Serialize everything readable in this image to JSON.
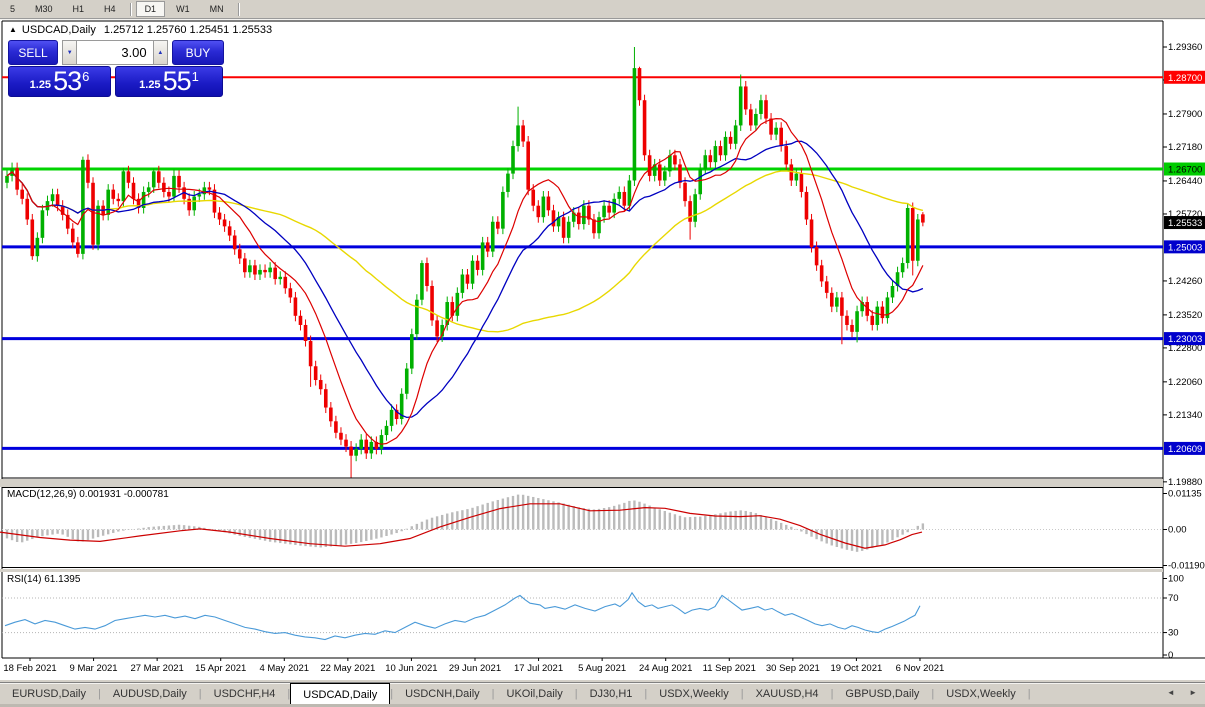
{
  "toolbar": {
    "timeframes": [
      {
        "label": "5",
        "active": false
      },
      {
        "label": "M30",
        "active": false
      },
      {
        "label": "H1",
        "active": false
      },
      {
        "label": "H4",
        "active": false
      },
      {
        "label": "D1",
        "active": true
      },
      {
        "label": "W1",
        "active": false
      },
      {
        "label": "MN",
        "active": false
      }
    ]
  },
  "chart_header": {
    "triangle_icon": "▲",
    "title": "USDCAD,Daily",
    "ohlc_text": "1.25712 1.25760 1.25451 1.25533"
  },
  "trade_panel": {
    "sell_label": "SELL",
    "buy_label": "BUY",
    "volume": "3.00",
    "spin_down_icon": "▼",
    "spin_up_icon": "▲",
    "sell_price": {
      "small": "1.25",
      "big": "53",
      "sup": "6"
    },
    "buy_price": {
      "small": "1.25",
      "big": "55",
      "sup": "1"
    }
  },
  "price_axis": {
    "ticks": [
      "1.29360",
      "1.28640",
      "1.27900",
      "1.27180",
      "1.26440",
      "1.25720",
      "1.24260",
      "1.23520",
      "1.22800",
      "1.22060",
      "1.21340",
      "1.19880"
    ],
    "badges": [
      {
        "text": "1.28700",
        "bg": "#ff0000",
        "fg": "#ffffff",
        "price": 1.287
      },
      {
        "text": "1.26700",
        "bg": "#00cc00",
        "fg": "#000000",
        "price": 1.267
      },
      {
        "text": "1.25533",
        "bg": "#000000",
        "fg": "#ffffff",
        "price": 1.25533
      },
      {
        "text": "1.25003",
        "bg": "#0000cc",
        "fg": "#ffffff",
        "price": 1.25003
      },
      {
        "text": "1.23003",
        "bg": "#0000cc",
        "fg": "#ffffff",
        "price": 1.23003
      },
      {
        "text": "1.20609",
        "bg": "#0000cc",
        "fg": "#ffffff",
        "price": 1.20609
      }
    ]
  },
  "dates": [
    "18 Feb 2021",
    "9 Mar 2021",
    "27 Mar 2021",
    "15 Apr 2021",
    "4 May 2021",
    "22 May 2021",
    "10 Jun 2021",
    "29 Jun 2021",
    "17 Jul 2021",
    "5 Aug 2021",
    "24 Aug 2021",
    "11 Sep 2021",
    "30 Sep 2021",
    "19 Oct 2021",
    "6 Nov 2021"
  ],
  "tabs": {
    "items": [
      "EURUSD,Daily",
      "AUDUSD,Daily",
      "USDCHF,H4",
      "USDCAD,Daily",
      "USDCNH,Daily",
      "UKOil,Daily",
      "DJ30,H1",
      "USDX,Weekly",
      "XAUUSD,H4",
      "GBPUSD,Daily",
      "USDX,Weekly"
    ],
    "active_index": 3,
    "left_arrow": "◄",
    "right_arrow": "►"
  },
  "chart_data": [
    {
      "type": "candlestick",
      "symbol": "USDCAD",
      "timeframe": "Daily",
      "y_range": [
        1.1988,
        1.2936
      ],
      "grid": false,
      "colors": {
        "up": "#00b000",
        "down": "#ee0000",
        "ma_fast": "#dd0000",
        "ma_mid": "#0000c0",
        "ma_slow": "#e8d800"
      },
      "h_lines": [
        {
          "price": 1.287,
          "color": "#fb0000",
          "width": 2
        },
        {
          "price": 1.267,
          "color": "#00d300",
          "width": 3
        },
        {
          "price": 1.25003,
          "color": "#0000dd",
          "width": 3
        },
        {
          "price": 1.23003,
          "color": "#0000dd",
          "width": 3
        },
        {
          "price": 1.20609,
          "color": "#0000dd",
          "width": 3
        }
      ],
      "moving_average_periods": {
        "fast": 10,
        "mid": 21,
        "slow": 55
      },
      "open_first": 1.264,
      "default_wick": 0.0012,
      "closes": [
        1.2655,
        1.2672,
        1.2625,
        1.2605,
        1.256,
        1.248,
        1.252,
        1.258,
        1.26,
        1.2615,
        1.259,
        1.257,
        1.254,
        1.251,
        1.2485,
        1.269,
        1.264,
        1.2505,
        1.259,
        1.257,
        1.2625,
        1.2605,
        1.26,
        1.2665,
        1.264,
        1.2605,
        1.2585,
        1.262,
        1.263,
        1.2665,
        1.264,
        1.262,
        1.261,
        1.2655,
        1.263,
        1.2605,
        1.258,
        1.261,
        1.2615,
        1.263,
        1.2625,
        1.2575,
        1.256,
        1.2545,
        1.2525,
        1.2495,
        1.2475,
        1.2445,
        1.246,
        1.244,
        1.245,
        1.2445,
        1.2455,
        1.243,
        1.2435,
        1.241,
        1.239,
        1.235,
        1.233,
        1.2295,
        1.224,
        1.221,
        1.219,
        1.215,
        1.212,
        1.2095,
        1.208,
        1.2065,
        1.2045,
        1.206,
        1.208,
        1.205,
        1.2075,
        1.206,
        1.209,
        1.211,
        1.2145,
        1.2125,
        1.218,
        1.2235,
        1.231,
        1.2385,
        1.2465,
        1.2415,
        1.234,
        1.2305,
        1.233,
        1.238,
        1.235,
        1.24,
        1.244,
        1.242,
        1.247,
        1.245,
        1.251,
        1.249,
        1.2555,
        1.254,
        1.262,
        1.266,
        1.272,
        1.2765,
        1.273,
        1.2625,
        1.259,
        1.2565,
        1.261,
        1.258,
        1.2545,
        1.2565,
        1.252,
        1.2555,
        1.2575,
        1.255,
        1.259,
        1.256,
        1.253,
        1.2565,
        1.259,
        1.2575,
        1.2605,
        1.262,
        1.259,
        1.2645,
        1.289,
        1.282,
        1.27,
        1.2655,
        1.268,
        1.2645,
        1.2665,
        1.27,
        1.268,
        1.264,
        1.26,
        1.2555,
        1.2615,
        1.267,
        1.27,
        1.2685,
        1.272,
        1.27,
        1.274,
        1.2725,
        1.2765,
        1.285,
        1.28,
        1.2765,
        1.279,
        1.282,
        1.278,
        1.2745,
        1.276,
        1.272,
        1.268,
        1.2645,
        1.266,
        1.262,
        1.256,
        1.25,
        1.246,
        1.2425,
        1.24,
        1.237,
        1.239,
        1.235,
        1.233,
        1.2315,
        1.236,
        1.238,
        1.235,
        1.233,
        1.237,
        1.2345,
        1.239,
        1.2415,
        1.2445,
        1.2465,
        1.2585,
        1.247,
        1.256,
        1.25533
      ],
      "overrides": {
        "5": {
          "l": 1.2472
        },
        "14": {
          "l": 1.2477
        },
        "15": {
          "h": 1.2697
        },
        "17": {
          "l": 1.2494
        },
        "23": {
          "h": 1.2673
        },
        "29": {
          "h": 1.2671
        },
        "33": {
          "h": 1.2669
        },
        "60": {
          "l": 1.2195
        },
        "68": {
          "l": 1.1995
        },
        "82": {
          "h": 1.2471
        },
        "101": {
          "h": 1.2806
        },
        "124": {
          "h": 1.2936
        },
        "125": {
          "h": 1.2893
        },
        "135": {
          "l": 1.2516
        },
        "145": {
          "h": 1.2876
        },
        "165": {
          "l": 1.2288
        },
        "168": {
          "l": 1.2292
        },
        "178": {
          "h": 1.2594
        },
        "179": {
          "l": 1.2438
        },
        "181": {
          "o": 1.25712,
          "h": 1.2576,
          "l": 1.25451,
          "c": 1.25533
        }
      }
    },
    {
      "type": "macd",
      "label": "MACD(12,26,9)",
      "values_text": "0.001931 -0.000781",
      "axis_ticks": [
        "0.01135",
        "0.00",
        "-0.01190"
      ],
      "axis_values": [
        0.01135,
        0.0,
        -0.0119
      ],
      "hist_color": "#bbbbbb",
      "signal_color": "#cc0000",
      "hist_points": [
        [
          0,
          -0.002
        ],
        [
          20,
          -0.0042
        ],
        [
          40,
          -0.0022
        ],
        [
          60,
          -0.0012
        ],
        [
          80,
          -0.004
        ],
        [
          100,
          -0.0022
        ],
        [
          120,
          -0.0005
        ],
        [
          150,
          0.0008
        ],
        [
          180,
          0.0015
        ],
        [
          200,
          0.0008
        ],
        [
          220,
          -0.0005
        ],
        [
          240,
          -0.002
        ],
        [
          270,
          -0.0038
        ],
        [
          300,
          -0.005
        ],
        [
          320,
          -0.0056
        ],
        [
          340,
          -0.005
        ],
        [
          360,
          -0.004
        ],
        [
          380,
          -0.0026
        ],
        [
          400,
          -0.0008
        ],
        [
          415,
          0.0015
        ],
        [
          430,
          0.0035
        ],
        [
          450,
          0.0052
        ],
        [
          470,
          0.0065
        ],
        [
          490,
          0.0085
        ],
        [
          505,
          0.0098
        ],
        [
          520,
          0.011
        ],
        [
          535,
          0.01
        ],
        [
          550,
          0.009
        ],
        [
          565,
          0.008
        ],
        [
          580,
          0.0068
        ],
        [
          595,
          0.0062
        ],
        [
          610,
          0.007
        ],
        [
          622,
          0.008
        ],
        [
          632,
          0.0092
        ],
        [
          640,
          0.0086
        ],
        [
          655,
          0.0068
        ],
        [
          670,
          0.0052
        ],
        [
          685,
          0.0038
        ],
        [
          700,
          0.004
        ],
        [
          715,
          0.0047
        ],
        [
          730,
          0.0056
        ],
        [
          742,
          0.006
        ],
        [
          755,
          0.0052
        ],
        [
          770,
          0.0034
        ],
        [
          785,
          0.0016
        ],
        [
          795,
          0.0004
        ],
        [
          805,
          -0.0012
        ],
        [
          815,
          -0.0028
        ],
        [
          830,
          -0.0048
        ],
        [
          845,
          -0.0062
        ],
        [
          858,
          -0.007
        ],
        [
          870,
          -0.006
        ],
        [
          882,
          -0.0048
        ],
        [
          892,
          -0.0034
        ],
        [
          900,
          -0.002
        ],
        [
          908,
          -0.0008
        ],
        [
          915,
          0.0006
        ],
        [
          922,
          0.0019
        ]
      ],
      "signal_points": [
        [
          0,
          -0.0008
        ],
        [
          40,
          -0.0025
        ],
        [
          70,
          -0.0033
        ],
        [
          100,
          -0.0037
        ],
        [
          140,
          -0.002
        ],
        [
          180,
          -0.0004
        ],
        [
          200,
          0.0002
        ],
        [
          230,
          -0.0008
        ],
        [
          270,
          -0.0028
        ],
        [
          310,
          -0.0044
        ],
        [
          345,
          -0.0052
        ],
        [
          380,
          -0.0044
        ],
        [
          410,
          -0.0028
        ],
        [
          440,
          0.0008
        ],
        [
          470,
          0.0038
        ],
        [
          500,
          0.0065
        ],
        [
          530,
          0.008
        ],
        [
          560,
          0.008
        ],
        [
          590,
          0.0058
        ],
        [
          620,
          0.006
        ],
        [
          645,
          0.0068
        ],
        [
          665,
          0.0066
        ],
        [
          690,
          0.005
        ],
        [
          715,
          0.0042
        ],
        [
          740,
          0.004
        ],
        [
          760,
          0.0043
        ],
        [
          780,
          0.0032
        ],
        [
          800,
          0.0012
        ],
        [
          820,
          -0.0015
        ],
        [
          845,
          -0.0042
        ],
        [
          865,
          -0.0058
        ],
        [
          885,
          -0.0048
        ],
        [
          900,
          -0.0032
        ],
        [
          912,
          -0.0016
        ],
        [
          922,
          -0.0008
        ]
      ]
    },
    {
      "type": "line",
      "label": "RSI(14)",
      "value_text": "61.1395",
      "axis_ticks": [
        "100",
        "70",
        "30",
        "0"
      ],
      "axis_values": [
        100,
        70,
        30,
        0
      ],
      "levels": [
        70,
        30
      ],
      "line_color": "#4a9ad8",
      "points": [
        [
          5,
          38
        ],
        [
          15,
          42
        ],
        [
          25,
          45
        ],
        [
          35,
          40
        ],
        [
          45,
          44
        ],
        [
          55,
          42
        ],
        [
          65,
          38
        ],
        [
          75,
          34
        ],
        [
          85,
          36
        ],
        [
          95,
          34
        ],
        [
          105,
          38
        ],
        [
          115,
          44
        ],
        [
          125,
          46
        ],
        [
          135,
          48
        ],
        [
          145,
          50
        ],
        [
          155,
          48
        ],
        [
          165,
          50
        ],
        [
          175,
          47
        ],
        [
          185,
          49
        ],
        [
          195,
          46
        ],
        [
          205,
          50
        ],
        [
          215,
          48
        ],
        [
          225,
          44
        ],
        [
          235,
          40
        ],
        [
          245,
          36
        ],
        [
          255,
          34
        ],
        [
          265,
          31
        ],
        [
          275,
          29
        ],
        [
          285,
          30
        ],
        [
          295,
          27
        ],
        [
          305,
          25
        ],
        [
          315,
          24
        ],
        [
          325,
          22
        ],
        [
          335,
          26
        ],
        [
          345,
          24
        ],
        [
          355,
          27
        ],
        [
          365,
          29
        ],
        [
          375,
          28
        ],
        [
          385,
          32
        ],
        [
          395,
          30
        ],
        [
          405,
          36
        ],
        [
          415,
          42
        ],
        [
          425,
          38
        ],
        [
          435,
          35
        ],
        [
          445,
          40
        ],
        [
          455,
          44
        ],
        [
          465,
          42
        ],
        [
          475,
          47
        ],
        [
          485,
          50
        ],
        [
          495,
          56
        ],
        [
          505,
          62
        ],
        [
          515,
          70
        ],
        [
          520,
          73
        ],
        [
          525,
          68
        ],
        [
          530,
          64
        ],
        [
          540,
          62
        ],
        [
          545,
          58
        ],
        [
          555,
          60
        ],
        [
          565,
          57
        ],
        [
          575,
          62
        ],
        [
          585,
          58
        ],
        [
          595,
          55
        ],
        [
          605,
          60
        ],
        [
          615,
          63
        ],
        [
          620,
          60
        ],
        [
          628,
          68
        ],
        [
          632,
          76
        ],
        [
          638,
          66
        ],
        [
          645,
          60
        ],
        [
          652,
          62
        ],
        [
          658,
          58
        ],
        [
          665,
          60
        ],
        [
          672,
          62
        ],
        [
          678,
          58
        ],
        [
          685,
          52
        ],
        [
          692,
          56
        ],
        [
          700,
          58
        ],
        [
          708,
          56
        ],
        [
          715,
          60
        ],
        [
          722,
          73
        ],
        [
          728,
          68
        ],
        [
          735,
          62
        ],
        [
          742,
          56
        ],
        [
          750,
          58
        ],
        [
          758,
          60
        ],
        [
          765,
          56
        ],
        [
          772,
          58
        ],
        [
          778,
          54
        ],
        [
          785,
          50
        ],
        [
          792,
          52
        ],
        [
          800,
          48
        ],
        [
          808,
          44
        ],
        [
          815,
          40
        ],
        [
          822,
          38
        ],
        [
          830,
          40
        ],
        [
          838,
          36
        ],
        [
          845,
          34
        ],
        [
          852,
          38
        ],
        [
          858,
          36
        ],
        [
          865,
          33
        ],
        [
          872,
          31
        ],
        [
          878,
          30
        ],
        [
          885,
          34
        ],
        [
          892,
          37
        ],
        [
          898,
          40
        ],
        [
          904,
          43
        ],
        [
          910,
          47
        ],
        [
          915,
          50
        ],
        [
          920,
          61
        ]
      ]
    }
  ]
}
